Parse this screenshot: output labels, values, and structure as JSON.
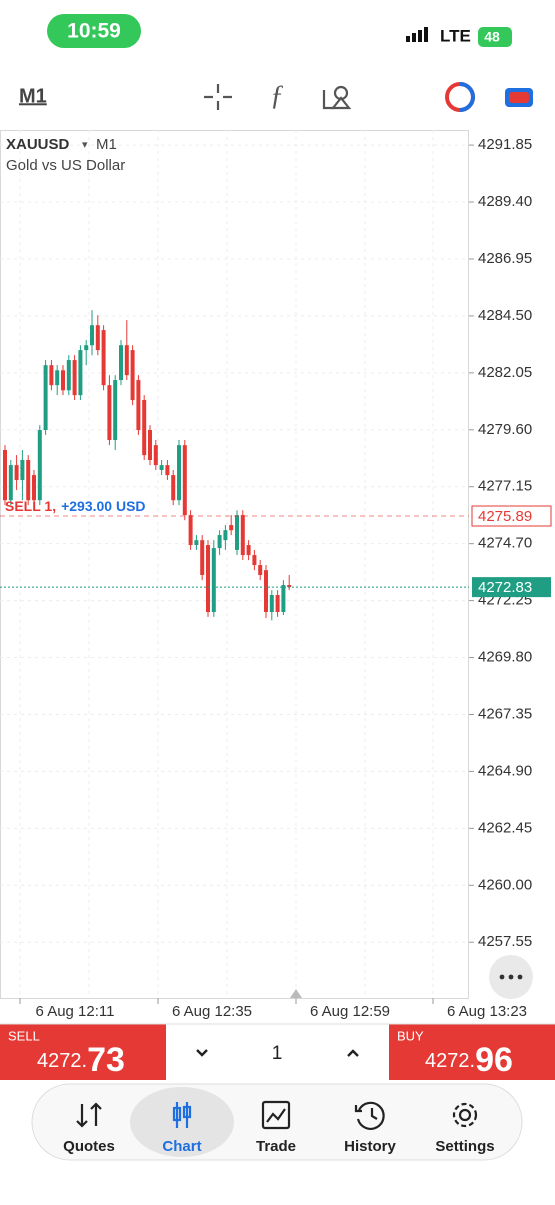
{
  "status_bar": {
    "time": "10:59",
    "network": "LTE",
    "battery": "48"
  },
  "toolbar": {
    "timeframe": "M1"
  },
  "chart_data": {
    "type": "candlestick",
    "symbol": "XAUUSD",
    "symbol_arrow": "▾",
    "timeframe": "M1",
    "subtitle": "Gold vs US Dollar",
    "up_color": "#1f9e84",
    "down_color": "#e53935",
    "open": [
      4278.73,
      4276.57,
      4278.08,
      4277.44,
      4278.3,
      4277.65,
      4276.57,
      4279.59,
      4282.38,
      4281.52,
      4282.16,
      4281.3,
      4282.6,
      4281.09,
      4283.03,
      4283.24,
      4284.1,
      4283.89,
      4281.52,
      4279.16,
      4281.74,
      4283.24,
      4283.03,
      4281.74,
      4280.88,
      4279.59,
      4278.94,
      4277.87,
      4278.08,
      4277.65,
      4276.57,
      4278.94,
      4275.93,
      4274.64,
      4274.85,
      4274.64,
      4271.76,
      4274.51,
      4274.85,
      4275.5,
      4274.43,
      4275.93,
      4274.64,
      4274.21,
      4273.78,
      4273.56,
      4271.76,
      4272.49,
      4271.76,
      4272.92
    ],
    "high": [
      4278.94,
      4278.3,
      4278.51,
      4278.73,
      4278.51,
      4277.87,
      4279.8,
      4282.6,
      4282.6,
      4282.38,
      4282.38,
      4282.81,
      4282.81,
      4283.24,
      4283.46,
      4284.75,
      4284.53,
      4284.1,
      4281.95,
      4281.95,
      4283.46,
      4284.32,
      4283.24,
      4281.95,
      4281.09,
      4279.8,
      4279.16,
      4278.3,
      4278.3,
      4277.87,
      4279.16,
      4279.16,
      4276.14,
      4275.07,
      4275.07,
      4274.85,
      4274.85,
      4275.28,
      4275.5,
      4275.93,
      4276.14,
      4276.14,
      4274.85,
      4274.43,
      4274.0,
      4273.78,
      4272.7,
      4272.7,
      4273.13,
      4273.35
    ],
    "low": [
      4276.36,
      4276.36,
      4277.01,
      4276.57,
      4276.36,
      4276.36,
      4276.36,
      4279.38,
      4281.3,
      4281.09,
      4281.09,
      4281.09,
      4280.88,
      4280.88,
      4282.38,
      4282.81,
      4282.81,
      4281.3,
      4278.94,
      4278.73,
      4281.52,
      4281.74,
      4280.66,
      4279.38,
      4278.3,
      4278.08,
      4277.87,
      4277.65,
      4277.44,
      4276.36,
      4276.36,
      4275.71,
      4274.43,
      4274.43,
      4273.13,
      4271.55,
      4271.55,
      4274.21,
      4274.43,
      4275.07,
      4274.21,
      4274.0,
      4273.99,
      4273.56,
      4273.13,
      4271.5,
      4271.4,
      4271.55,
      4271.63,
      4272.7
    ],
    "close": [
      4276.57,
      4278.08,
      4277.44,
      4278.3,
      4276.57,
      4276.57,
      4279.59,
      4282.38,
      4281.52,
      4282.16,
      4281.3,
      4282.6,
      4281.09,
      4283.03,
      4283.24,
      4284.1,
      4283.03,
      4281.52,
      4279.16,
      4281.74,
      4283.24,
      4281.95,
      4280.88,
      4279.59,
      4278.51,
      4278.3,
      4278.08,
      4278.08,
      4277.65,
      4276.57,
      4278.94,
      4275.93,
      4274.64,
      4274.85,
      4273.35,
      4271.76,
      4274.51,
      4275.07,
      4275.28,
      4275.28,
      4275.93,
      4274.21,
      4274.21,
      4273.78,
      4273.35,
      4271.76,
      4272.49,
      4271.76,
      4272.92,
      4272.83
    ],
    "ylim": [
      4255.15,
      4292.5
    ],
    "yticks": [
      4291.85,
      {
        "value": 4289.4,
        "label": "4289.40"
      },
      4286.95,
      {
        "value": 4284.5,
        "label": "4284.50"
      },
      4282.05,
      {
        "value": 4279.6,
        "label": "4279.60"
      },
      4277.15,
      {
        "value": 4274.7,
        "label": "4274.70"
      },
      4272.25,
      {
        "value": 4269.8,
        "label": "4269.80"
      },
      4267.35,
      {
        "value": 4264.9,
        "label": "4264.90"
      },
      4262.45,
      {
        "value": 4260,
        "label": "4260.00"
      },
      4257.55
    ],
    "xtick_labels": [
      "6 Aug 12:11",
      "6 Aug 12:35",
      "6 Aug 12:59",
      "6 Aug 13:23"
    ],
    "grid": true,
    "position_line": {
      "side": "SELL 1,",
      "profit": "+293.00 USD",
      "value": 4275.89,
      "color": "#e53935",
      "profit_color": "#1e6fe0"
    },
    "price_line": {
      "value": 4272.83,
      "color": "#1f9e84"
    }
  },
  "trade_panel": {
    "sell": {
      "label": "SELL",
      "price_main": "4272.",
      "price_big": "73"
    },
    "volume": "1",
    "buy": {
      "label": "BUY",
      "price_main": "4272.",
      "price_big": "96"
    }
  },
  "nav": [
    {
      "label": "Quotes",
      "active": false
    },
    {
      "label": "Chart",
      "active": true
    },
    {
      "label": "Trade",
      "active": false
    },
    {
      "label": "History",
      "active": false
    },
    {
      "label": "Settings",
      "active": false
    }
  ]
}
